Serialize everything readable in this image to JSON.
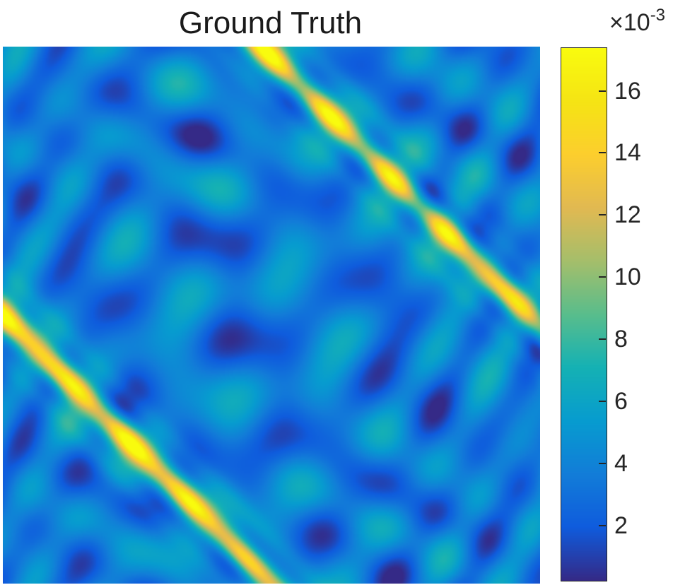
{
  "chart_data": {
    "type": "heatmap",
    "title": "Ground Truth",
    "xlabel": "",
    "ylabel": "",
    "colormap": "parula",
    "colorbar": {
      "multiplier_base": "×10",
      "multiplier_exp": "-3",
      "range": [
        0.0002,
        0.0174
      ],
      "ticks": [
        {
          "value": 0.002,
          "label": "2"
        },
        {
          "value": 0.004,
          "label": "4"
        },
        {
          "value": 0.006,
          "label": "6"
        },
        {
          "value": 0.008,
          "label": "8"
        },
        {
          "value": 0.01,
          "label": "10"
        },
        {
          "value": 0.012,
          "label": "12"
        },
        {
          "value": 0.014,
          "label": "14"
        },
        {
          "value": 0.016,
          "label": "16"
        }
      ]
    },
    "description": "Two bright diagonal bands (peak ~0.017) running from upper-left toward lower-right, on a rippled background of ~0.001–0.006",
    "bands": [
      {
        "intercept": 0.48,
        "peak": 0.0168
      },
      {
        "intercept": -0.5,
        "peak": 0.0172
      }
    ],
    "background_mean": 0.0035
  }
}
